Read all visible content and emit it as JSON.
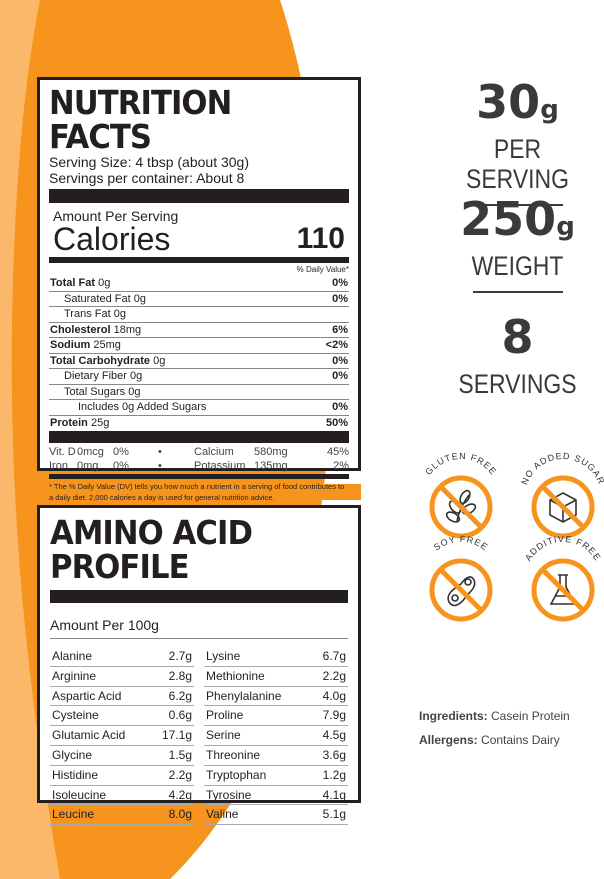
{
  "colors": {
    "orange": "#f7941d",
    "dark": "#231f20"
  },
  "nutrition": {
    "title": "NUTRITION FACTS",
    "serving_size": "Serving Size: 4 tbsp (about 30g)",
    "servings_per_container": "Servings per container: About 8",
    "amount_per_serving": "Amount Per Serving",
    "calories_label": "Calories",
    "calories_value": "110",
    "dv_header": "% Daily Value*",
    "rows": [
      {
        "label": "Total Fat",
        "amount": "0g",
        "dv": "0%",
        "bold": true,
        "indent": 0
      },
      {
        "label": "Saturated Fat",
        "amount": "0g",
        "dv": "0%",
        "bold": false,
        "indent": 1
      },
      {
        "label": "Trans Fat",
        "amount": "0g",
        "dv": "",
        "bold": false,
        "indent": 1
      },
      {
        "label": "Cholesterol",
        "amount": "18mg",
        "dv": "6%",
        "bold": true,
        "indent": 0
      },
      {
        "label": "Sodium",
        "amount": "25mg",
        "dv": "<2%",
        "bold": true,
        "indent": 0
      },
      {
        "label": "Total Carbohydrate",
        "amount": "0g",
        "dv": "0%",
        "bold": true,
        "indent": 0
      },
      {
        "label": "Dietary Fiber",
        "amount": "0g",
        "dv": "0%",
        "bold": false,
        "indent": 1
      },
      {
        "label": "Total Sugars",
        "amount": "0g",
        "dv": "",
        "bold": false,
        "indent": 1
      },
      {
        "label": "Includes 0g Added Sugars",
        "amount": "",
        "dv": "0%",
        "bold": false,
        "indent": 2
      },
      {
        "label": "Protein",
        "amount": "25g",
        "dv": "50%",
        "bold": true,
        "indent": 0
      }
    ],
    "vitamins": [
      [
        "Vit. D",
        "0mcg",
        "0%",
        "•",
        "Calcium",
        "580mg",
        "45%"
      ],
      [
        "Iron",
        "0mg",
        "0%",
        "•",
        "Potassium",
        "135mg",
        "2%"
      ]
    ],
    "footnote": "* The % Daily Value (DV) tells you how much a nutrient in a serving of food contributes to a daily diet. 2,000 calories a day is used for general nutrition advice."
  },
  "amino": {
    "title": "AMINO ACID PROFILE",
    "amount_per": "Amount Per 100g",
    "left": [
      [
        "Alanine",
        "2.7g"
      ],
      [
        "Arginine",
        "2.8g"
      ],
      [
        "Aspartic Acid",
        "6.2g"
      ],
      [
        "Cysteine",
        "0.6g"
      ],
      [
        "Glutamic Acid",
        "17.1g"
      ],
      [
        "Glycine",
        "1.5g"
      ],
      [
        "Histidine",
        "2.2g"
      ],
      [
        "Isoleucine",
        "4.2g"
      ],
      [
        "Leucine",
        "8.0g"
      ]
    ],
    "right": [
      [
        "Lysine",
        "6.7g"
      ],
      [
        "Methionine",
        "2.2g"
      ],
      [
        "Phenylalanine",
        "4.0g"
      ],
      [
        "Proline",
        "7.9g"
      ],
      [
        "Serine",
        "4.5g"
      ],
      [
        "Threonine",
        "3.6g"
      ],
      [
        "Tryptophan",
        "1.2g"
      ],
      [
        "Tyrosine",
        "4.1g"
      ],
      [
        "Valine",
        "5.1g"
      ]
    ]
  },
  "stats": [
    {
      "value": "30",
      "unit": "g",
      "label": "PER SERVING"
    },
    {
      "value": "250",
      "unit": "g",
      "label": "WEIGHT"
    },
    {
      "value": "8",
      "unit": "",
      "label": "SERVINGS"
    }
  ],
  "badges": [
    {
      "label": "GLUTEN FREE",
      "icon": "wheat-icon"
    },
    {
      "label": "NO ADDED SUGAR",
      "icon": "sugar-cube-icon"
    },
    {
      "label": "SOY FREE",
      "icon": "soybean-icon"
    },
    {
      "label": "ADDITIVE FREE",
      "icon": "flask-icon"
    }
  ],
  "ingredients": {
    "label": "Ingredients:",
    "value": "Casein Protein"
  },
  "allergens": {
    "label": "Allergens:",
    "value": "Contains Dairy"
  }
}
